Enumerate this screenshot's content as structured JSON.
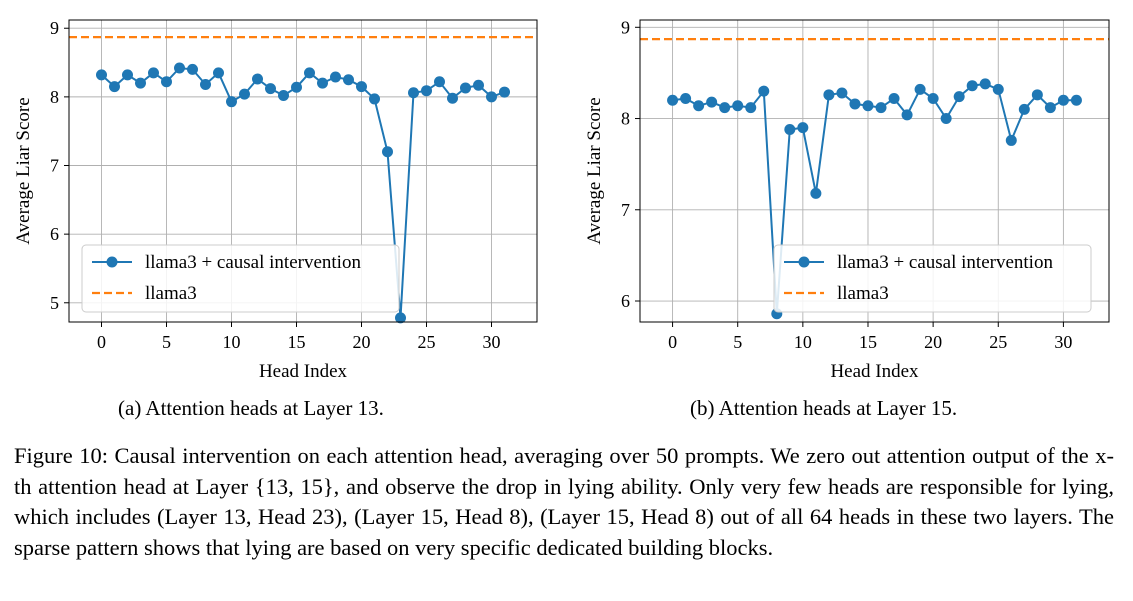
{
  "chart_data": [
    {
      "type": "line",
      "xlabel": "Head Index",
      "ylabel": "Average Liar Score",
      "xlim": [
        -2.5,
        33.5
      ],
      "ylim": [
        4.72,
        9.12
      ],
      "xticks": [
        0,
        5,
        10,
        15,
        20,
        25,
        30
      ],
      "yticks": [
        5,
        6,
        7,
        8,
        9
      ],
      "grid": true,
      "legend": "lower-left",
      "series": [
        {
          "name": "llama3 + causal intervention",
          "color": "#1f77b4",
          "style": "solid-marker",
          "x": [
            0,
            1,
            2,
            3,
            4,
            5,
            6,
            7,
            8,
            9,
            10,
            11,
            12,
            13,
            14,
            15,
            16,
            17,
            18,
            19,
            20,
            21,
            22,
            23,
            24,
            25,
            26,
            27,
            28,
            29,
            30,
            31
          ],
          "y": [
            8.32,
            8.15,
            8.32,
            8.2,
            8.35,
            8.22,
            8.42,
            8.4,
            8.18,
            8.35,
            7.93,
            8.04,
            8.26,
            8.12,
            8.02,
            8.14,
            8.35,
            8.2,
            8.29,
            8.25,
            8.15,
            7.97,
            7.2,
            4.78,
            8.06,
            8.09,
            8.22,
            7.98,
            8.13,
            8.17,
            8.0,
            8.07
          ]
        },
        {
          "name": "llama3",
          "color": "#ff7f0e",
          "style": "dashed",
          "y_const": 8.87
        }
      ]
    },
    {
      "type": "line",
      "xlabel": "Head Index",
      "ylabel": "Average Liar Score",
      "xlim": [
        -2.5,
        33.5
      ],
      "ylim": [
        5.77,
        9.08
      ],
      "xticks": [
        0,
        5,
        10,
        15,
        20,
        25,
        30
      ],
      "yticks": [
        6,
        7,
        8,
        9
      ],
      "grid": true,
      "legend": "lower-right",
      "series": [
        {
          "name": "llama3 + causal intervention",
          "color": "#1f77b4",
          "style": "solid-marker",
          "x": [
            0,
            1,
            2,
            3,
            4,
            5,
            6,
            7,
            8,
            9,
            10,
            11,
            12,
            13,
            14,
            15,
            16,
            17,
            18,
            19,
            20,
            21,
            22,
            23,
            24,
            25,
            26,
            27,
            28,
            29,
            30,
            31
          ],
          "y": [
            8.2,
            8.22,
            8.14,
            8.18,
            8.12,
            8.14,
            8.12,
            8.3,
            5.86,
            7.88,
            7.9,
            7.18,
            8.26,
            8.28,
            8.16,
            8.14,
            8.12,
            8.22,
            8.04,
            8.32,
            8.22,
            8.0,
            8.24,
            8.36,
            8.38,
            8.32,
            7.76,
            8.1,
            8.26,
            8.12,
            8.2,
            8.2
          ]
        },
        {
          "name": "llama3",
          "color": "#ff7f0e",
          "style": "dashed",
          "y_const": 8.87
        }
      ]
    }
  ],
  "subcaptions": {
    "a": "(a) Attention heads at Layer 13.",
    "b": "(b) Attention heads at Layer 15."
  },
  "caption": {
    "label": "Figure 10:",
    "text": "Causal intervention on each attention head, averaging over 50 prompts. We zero out attention output of the x-th attention head at Layer {13, 15}, and observe the drop in lying ability. Only very few heads are responsible for lying, which includes (Layer 13, Head 23), (Layer 15, Head 8), (Layer 15, Head 8) out of all 64 heads in these two layers. The sparse pattern shows that lying are based on very specific dedicated building blocks."
  }
}
